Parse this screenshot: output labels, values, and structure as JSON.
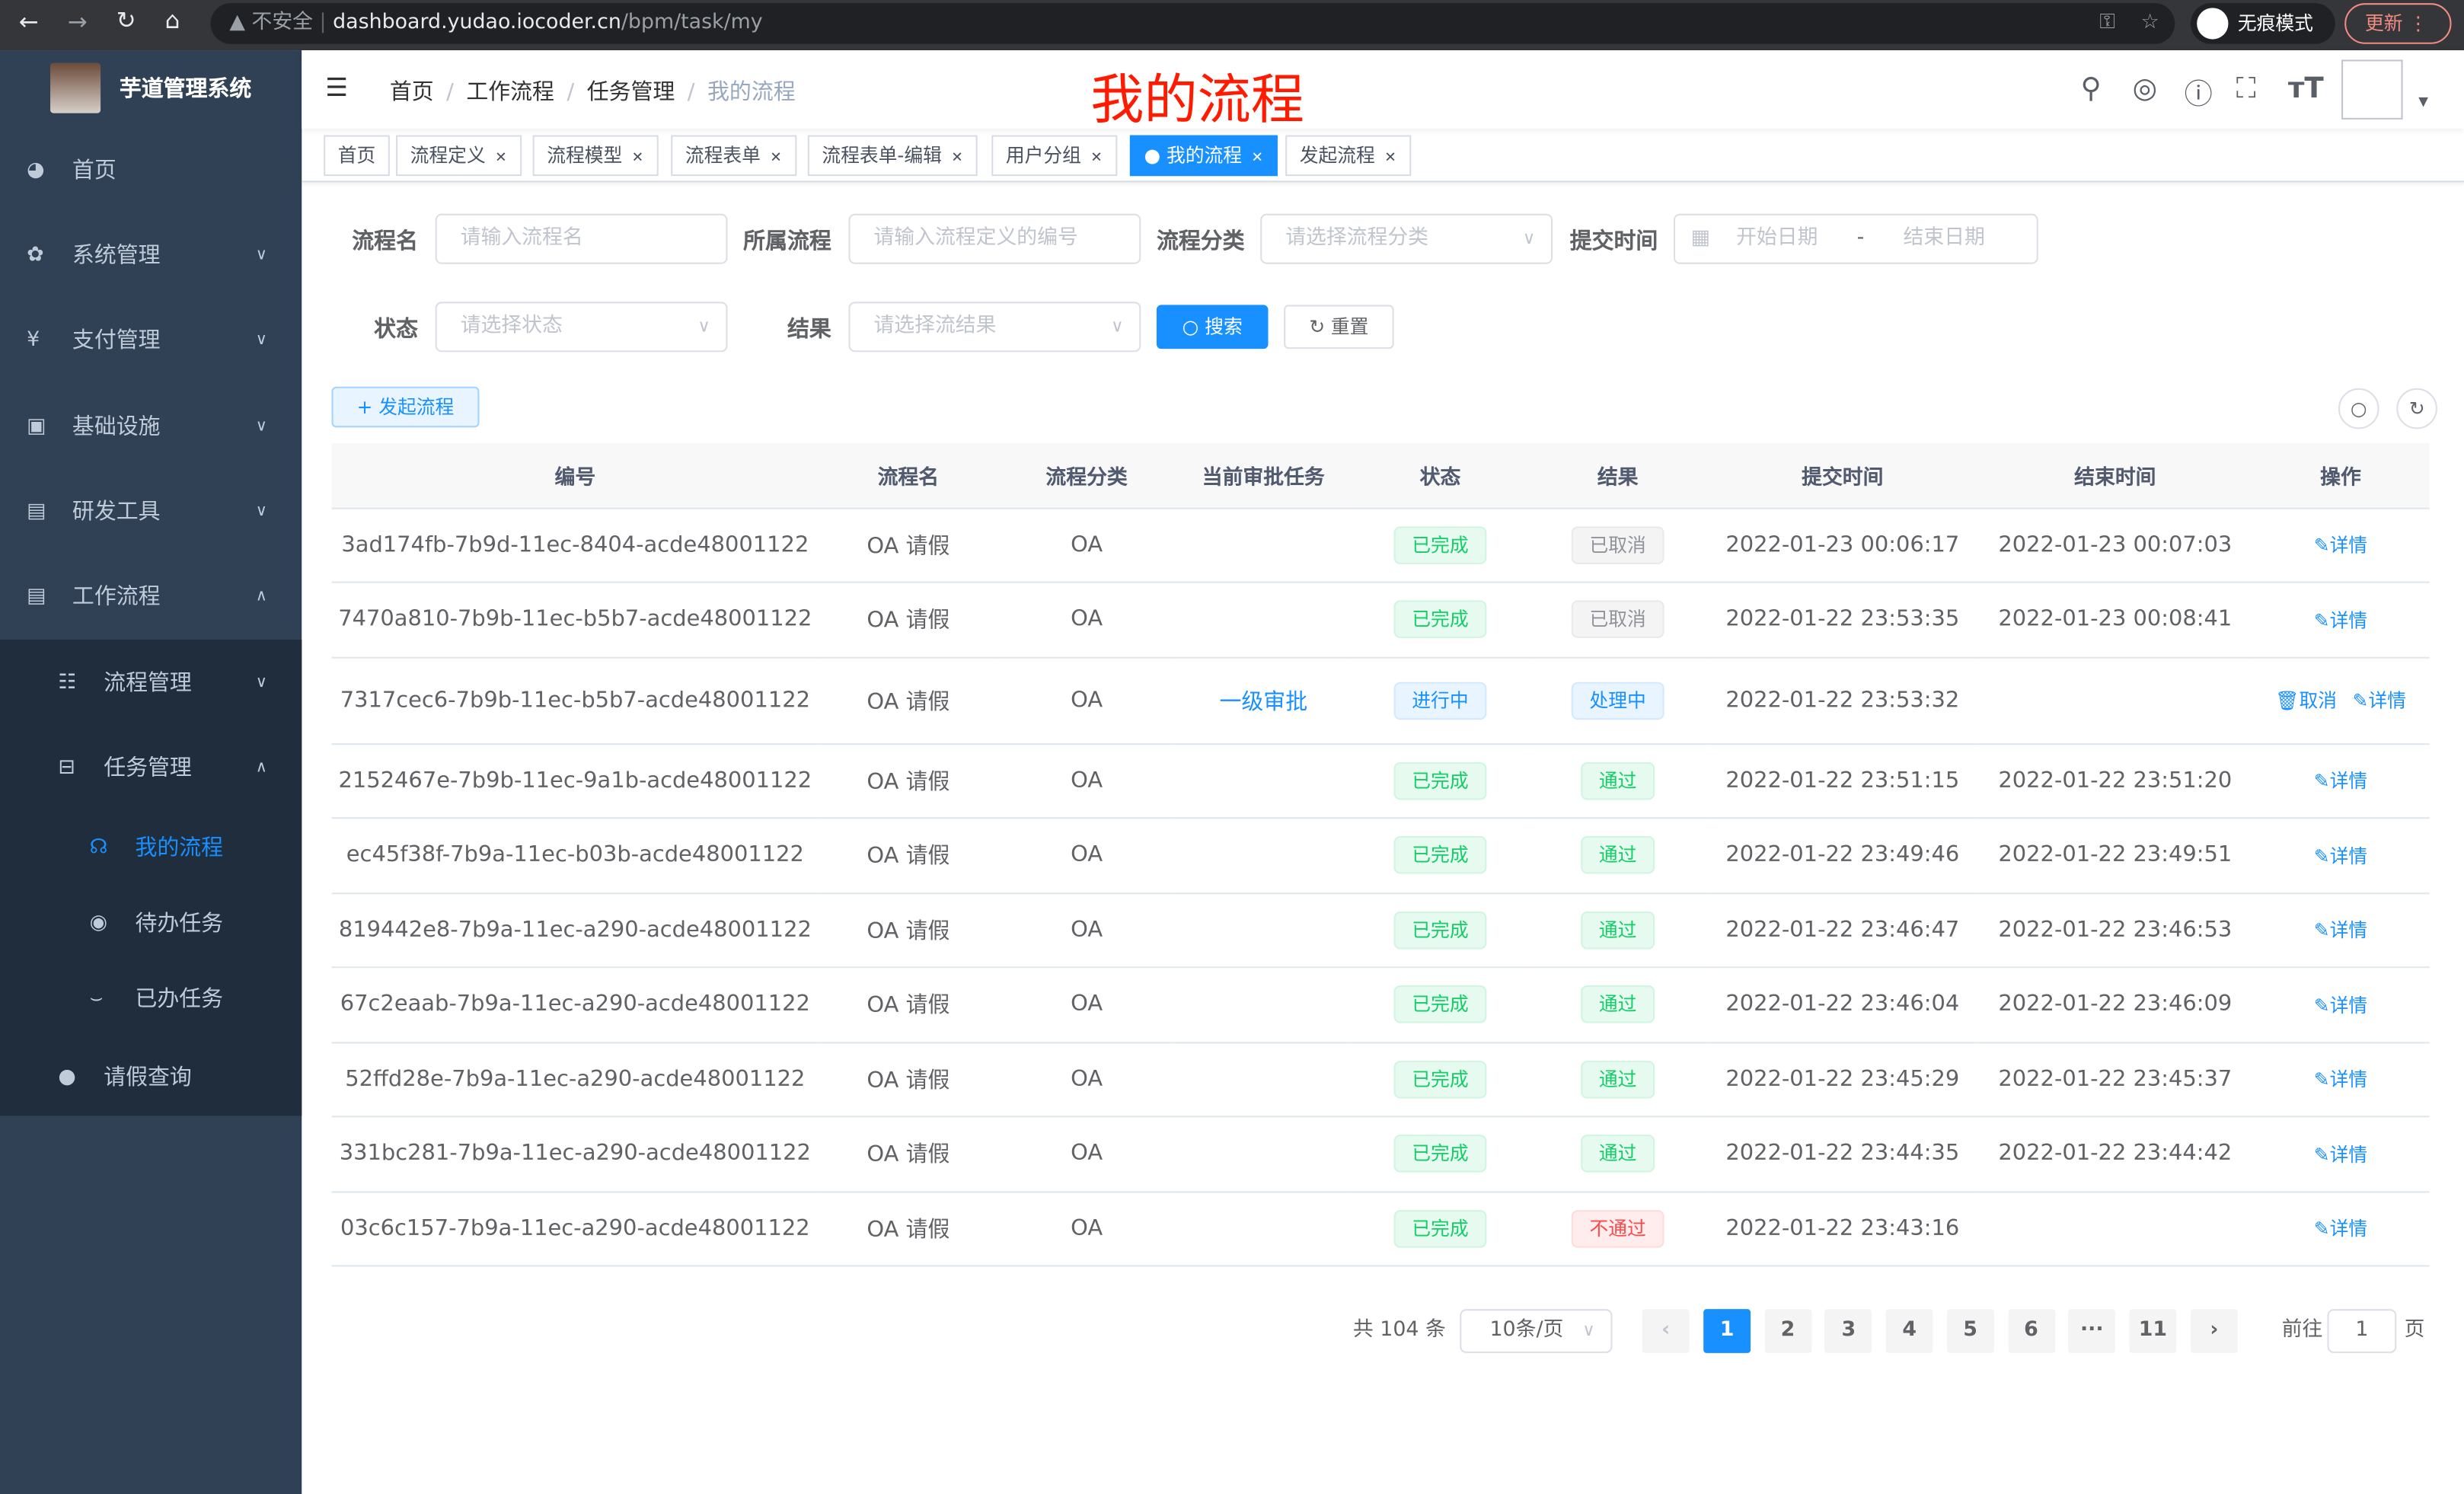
{
  "browser": {
    "insecure": "不安全",
    "url_host": "dashboard.yudao.iocoder.cn",
    "url_path": "/bpm/task/my",
    "incognito": "无痕模式",
    "update": "更新"
  },
  "app": {
    "title": "芋道管理系统",
    "page_heading": "我的流程"
  },
  "sidebar": {
    "items": [
      {
        "label": "首页",
        "icon": "dashboard-icon"
      },
      {
        "label": "系统管理",
        "icon": "gear-icon"
      },
      {
        "label": "支付管理",
        "icon": "yen-icon"
      },
      {
        "label": "基础设施",
        "icon": "monitor-icon"
      },
      {
        "label": "研发工具",
        "icon": "toolbox-icon"
      },
      {
        "label": "工作流程",
        "icon": "toolbox-icon"
      },
      {
        "label": "流程管理",
        "icon": "list-icon"
      },
      {
        "label": "任务管理",
        "icon": "task-icon"
      },
      {
        "label": "我的流程",
        "icon": "headset-icon"
      },
      {
        "label": "待办任务",
        "icon": "eye-icon"
      },
      {
        "label": "已办任务",
        "icon": "eye-closed-icon"
      },
      {
        "label": "请假查询",
        "icon": "user-icon"
      }
    ],
    "active_color": "#1890ff"
  },
  "breadcrumb": [
    "首页",
    "工作流程",
    "任务管理",
    "我的流程"
  ],
  "tags": [
    {
      "label": "首页"
    },
    {
      "label": "流程定义"
    },
    {
      "label": "流程模型"
    },
    {
      "label": "流程表单"
    },
    {
      "label": "流程表单-编辑"
    },
    {
      "label": "用户分组"
    },
    {
      "label": "我的流程",
      "active": true
    },
    {
      "label": "发起流程"
    }
  ],
  "filters": {
    "name_label": "流程名",
    "name_placeholder": "请输入流程名",
    "def_label": "所属流程",
    "def_placeholder": "请输入流程定义的编号",
    "cat_label": "流程分类",
    "cat_placeholder": "请选择流程分类",
    "time_label": "提交时间",
    "start_placeholder": "开始日期",
    "sep": "-",
    "end_placeholder": "结束日期",
    "status_label": "状态",
    "status_placeholder": "请选择状态",
    "result_label": "结果",
    "result_placeholder": "请选择流结果",
    "search": "搜索",
    "reset": "重置"
  },
  "toolbar": {
    "create": "发起流程"
  },
  "table": {
    "columns": [
      "编号",
      "流程名",
      "流程分类",
      "当前审批任务",
      "状态",
      "结果",
      "提交时间",
      "结束时间",
      "操作"
    ],
    "rows": [
      {
        "id": "3ad174fb-7b9d-11ec-8404-acde48001122",
        "name": "OA 请假",
        "cat": "OA",
        "task": "",
        "status": "已完成",
        "status_type": "success",
        "result": "已取消",
        "result_type": "info",
        "submit": "2022-01-23 00:06:17",
        "end": "2022-01-23 00:07:03",
        "actions": [
          "详情"
        ]
      },
      {
        "id": "7470a810-7b9b-11ec-b5b7-acde48001122",
        "name": "OA 请假",
        "cat": "OA",
        "task": "",
        "status": "已完成",
        "status_type": "success",
        "result": "已取消",
        "result_type": "info",
        "submit": "2022-01-22 23:53:35",
        "end": "2022-01-23 00:08:41",
        "actions": [
          "详情"
        ]
      },
      {
        "id": "7317cec6-7b9b-11ec-b5b7-acde48001122",
        "name": "OA 请假",
        "cat": "OA",
        "task": "一级审批",
        "status": "进行中",
        "status_type": "primary",
        "result": "处理中",
        "result_type": "primary",
        "submit": "2022-01-22 23:53:32",
        "end": "",
        "actions": [
          "取消",
          "详情"
        ]
      },
      {
        "id": "2152467e-7b9b-11ec-9a1b-acde48001122",
        "name": "OA 请假",
        "cat": "OA",
        "task": "",
        "status": "已完成",
        "status_type": "success",
        "result": "通过",
        "result_type": "success",
        "submit": "2022-01-22 23:51:15",
        "end": "2022-01-22 23:51:20",
        "actions": [
          "详情"
        ]
      },
      {
        "id": "ec45f38f-7b9a-11ec-b03b-acde48001122",
        "name": "OA 请假",
        "cat": "OA",
        "task": "",
        "status": "已完成",
        "status_type": "success",
        "result": "通过",
        "result_type": "success",
        "submit": "2022-01-22 23:49:46",
        "end": "2022-01-22 23:49:51",
        "actions": [
          "详情"
        ]
      },
      {
        "id": "819442e8-7b9a-11ec-a290-acde48001122",
        "name": "OA 请假",
        "cat": "OA",
        "task": "",
        "status": "已完成",
        "status_type": "success",
        "result": "通过",
        "result_type": "success",
        "submit": "2022-01-22 23:46:47",
        "end": "2022-01-22 23:46:53",
        "actions": [
          "详情"
        ]
      },
      {
        "id": "67c2eaab-7b9a-11ec-a290-acde48001122",
        "name": "OA 请假",
        "cat": "OA",
        "task": "",
        "status": "已完成",
        "status_type": "success",
        "result": "通过",
        "result_type": "success",
        "submit": "2022-01-22 23:46:04",
        "end": "2022-01-22 23:46:09",
        "actions": [
          "详情"
        ]
      },
      {
        "id": "52ffd28e-7b9a-11ec-a290-acde48001122",
        "name": "OA 请假",
        "cat": "OA",
        "task": "",
        "status": "已完成",
        "status_type": "success",
        "result": "通过",
        "result_type": "success",
        "submit": "2022-01-22 23:45:29",
        "end": "2022-01-22 23:45:37",
        "actions": [
          "详情"
        ]
      },
      {
        "id": "331bc281-7b9a-11ec-a290-acde48001122",
        "name": "OA 请假",
        "cat": "OA",
        "task": "",
        "status": "已完成",
        "status_type": "success",
        "result": "通过",
        "result_type": "success",
        "submit": "2022-01-22 23:44:35",
        "end": "2022-01-22 23:44:42",
        "actions": [
          "详情"
        ]
      },
      {
        "id": "03c6c157-7b9a-11ec-a290-acde48001122",
        "name": "OA 请假",
        "cat": "OA",
        "task": "",
        "status": "已完成",
        "status_type": "success",
        "result": "不通过",
        "result_type": "danger",
        "submit": "2022-01-22 23:43:16",
        "end": "",
        "actions": [
          "详情"
        ]
      }
    ]
  },
  "pagination": {
    "total": "共 104 条",
    "page_size": "10条/页",
    "pages": [
      "1",
      "2",
      "3",
      "4",
      "5",
      "6",
      "···",
      "11"
    ],
    "current": "1",
    "goto_label": "前往",
    "goto_value": "1",
    "goto_suffix": "页"
  }
}
